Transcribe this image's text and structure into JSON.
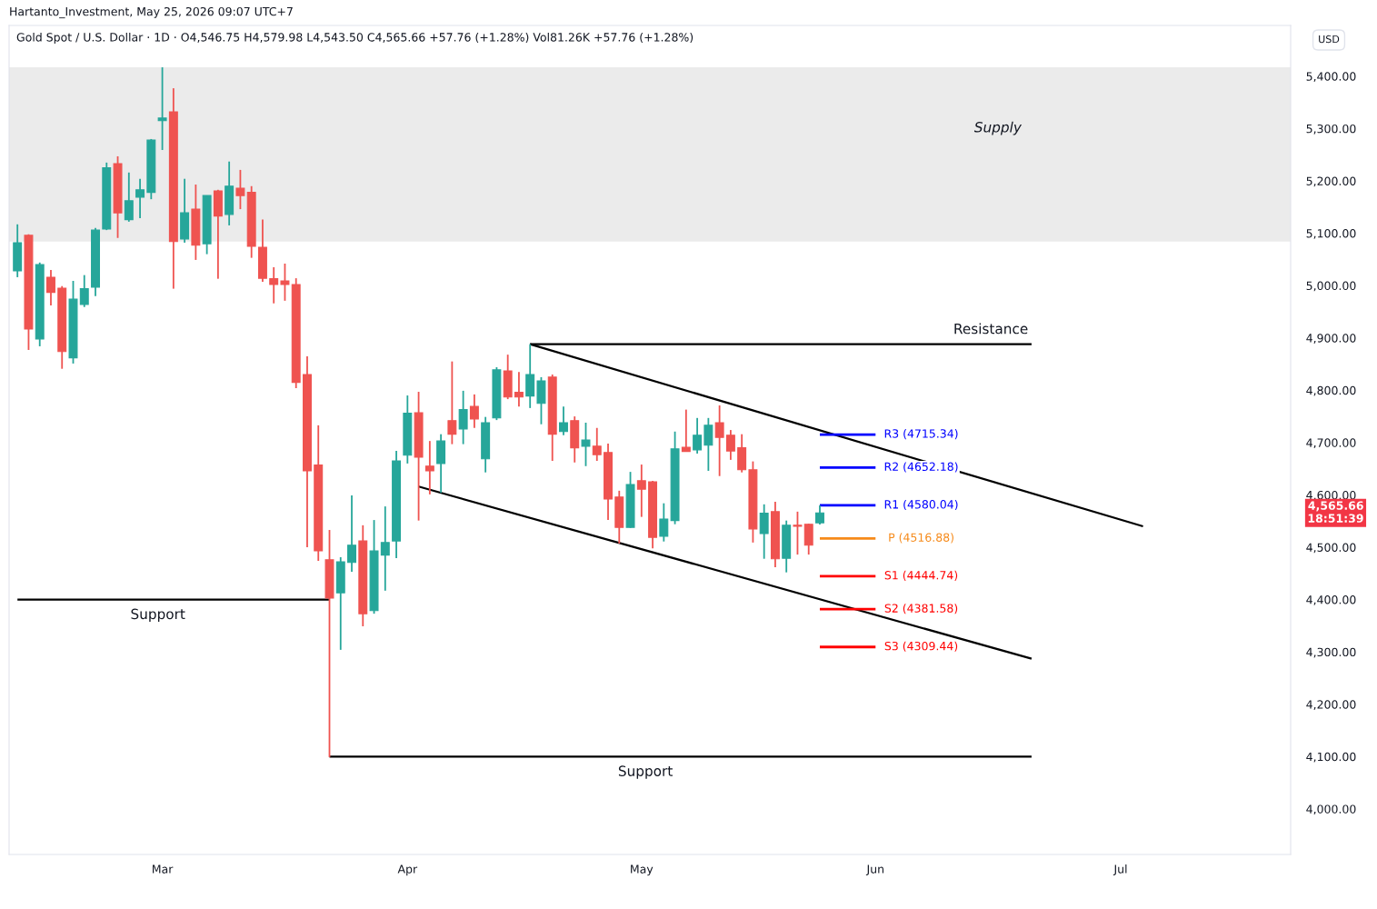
{
  "chart_data": {
    "type": "candlestick",
    "title": "Gold Spot / U.S. Dollar · 1D · O4,546.75 H4,579.98 L4,543.50 C4,565.66 +57.76 (+1.28%) Vol81.26K +57.76 (+1.28%)",
    "subtitle": "Hartanto_Investment, May 25, 2026 09:07 UTC+7",
    "categories": [
      null,
      null,
      null,
      null,
      null,
      null,
      null,
      null,
      null,
      null,
      null,
      null,
      null,
      "Mar",
      null,
      null,
      null,
      null,
      null,
      null,
      null,
      null,
      null,
      null,
      null,
      null,
      null,
      null,
      null,
      null,
      null,
      null,
      null,
      null,
      null,
      "Apr",
      null,
      null,
      null,
      null,
      null,
      null,
      null,
      null,
      null,
      null,
      null,
      null,
      null,
      null,
      null,
      null,
      null,
      null,
      null,
      null,
      "May",
      null,
      null,
      null,
      null,
      null,
      null,
      null,
      null,
      null,
      null,
      null,
      null,
      null,
      null,
      null,
      null,
      null,
      null,
      null,
      null,
      "Jun",
      null,
      null,
      null,
      null,
      null,
      null,
      null,
      null,
      null,
      null,
      null,
      null,
      null,
      null,
      null,
      null,
      null,
      null,
      null,
      null,
      null,
      "Jul",
      null,
      null,
      null,
      null,
      null,
      null,
      null,
      null,
      null,
      null,
      null,
      null,
      null,
      null,
      null
    ],
    "ohlc": [
      [
        5028,
        5117,
        5016,
        5082
      ],
      [
        5096,
        5098,
        4877,
        4917
      ],
      [
        4898,
        5044,
        4884,
        5040
      ],
      [
        5016,
        5030,
        4962,
        4987
      ],
      [
        4995,
        4999,
        4841,
        4874
      ],
      [
        4862,
        5009,
        4851,
        4974
      ],
      [
        4964,
        5020,
        4959,
        4994
      ],
      [
        4997,
        5110,
        4980,
        5106
      ],
      [
        5108,
        5235,
        5106,
        5225
      ],
      [
        5233,
        5247,
        5091,
        5139
      ],
      [
        5126,
        5216,
        5122,
        5162
      ],
      [
        5169,
        5204,
        5129,
        5183
      ],
      [
        5178,
        5280,
        5165,
        5278
      ],
      [
        5315,
        5417,
        5259,
        5320
      ],
      [
        5332,
        5377,
        4994,
        5084
      ],
      [
        5089,
        5204,
        5082,
        5139
      ],
      [
        5146,
        5193,
        5049,
        5077
      ],
      [
        5080,
        5172,
        5060,
        5172
      ],
      [
        5181,
        5183,
        5013,
        5133
      ],
      [
        5136,
        5237,
        5115,
        5190
      ],
      [
        5186,
        5221,
        5146,
        5172
      ],
      [
        5178,
        5190,
        5053,
        5075
      ],
      [
        5073,
        5126,
        5007,
        5014
      ],
      [
        5013,
        5035,
        4966,
        5002
      ],
      [
        5009,
        5042,
        4971,
        5002
      ],
      [
        5002,
        5014,
        4804,
        4815
      ],
      [
        4830,
        4865,
        4500,
        4646
      ],
      [
        4657,
        4733,
        4474,
        4493
      ],
      [
        4476,
        4533,
        4099,
        4403
      ],
      [
        4413,
        4481,
        4304,
        4472
      ],
      [
        4471,
        4599,
        4453,
        4504
      ],
      [
        4512,
        4542,
        4349,
        4373
      ],
      [
        4379,
        4552,
        4373,
        4493
      ],
      [
        4485,
        4578,
        4417,
        4509
      ],
      [
        4512,
        4684,
        4479,
        4665
      ],
      [
        4676,
        4790,
        4660,
        4756
      ],
      [
        4757,
        4797,
        4551,
        4672
      ],
      [
        4655,
        4703,
        4601,
        4646
      ],
      [
        4660,
        4716,
        4604,
        4703
      ],
      [
        4742,
        4855,
        4697,
        4716
      ],
      [
        4726,
        4799,
        4697,
        4763
      ],
      [
        4769,
        4792,
        4728,
        4745
      ],
      [
        4669,
        4749,
        4643,
        4738
      ],
      [
        4747,
        4844,
        4743,
        4839
      ],
      [
        4837,
        4868,
        4783,
        4787
      ],
      [
        4796,
        4835,
        4769,
        4787
      ],
      [
        4789,
        4888,
        4766,
        4830
      ],
      [
        4775,
        4825,
        4735,
        4818
      ],
      [
        4825,
        4830,
        4665,
        4716
      ],
      [
        4721,
        4769,
        4714,
        4738
      ],
      [
        4742,
        4750,
        4662,
        4690
      ],
      [
        4693,
        4738,
        4655,
        4705
      ],
      [
        4693,
        4728,
        4665,
        4677
      ],
      [
        4681,
        4698,
        4552,
        4592
      ],
      [
        4596,
        4608,
        4507,
        4538
      ],
      [
        4538,
        4644,
        4537,
        4620
      ],
      [
        4627,
        4658,
        4558,
        4611
      ],
      [
        4625,
        4627,
        4498,
        4519
      ],
      [
        4521,
        4584,
        4511,
        4554
      ],
      [
        4551,
        4721,
        4544,
        4688
      ],
      [
        4691,
        4763,
        4683,
        4683
      ],
      [
        4686,
        4747,
        4679,
        4714
      ],
      [
        4695,
        4747,
        4646,
        4733
      ],
      [
        4738,
        4771,
        4636,
        4710
      ],
      [
        4714,
        4724,
        4667,
        4684
      ],
      [
        4690,
        4716,
        4643,
        4648
      ],
      [
        4648,
        4664,
        4509,
        4535
      ],
      [
        4526,
        4582,
        4478,
        4565
      ],
      [
        4568,
        4587,
        4462,
        4478
      ],
      [
        4479,
        4551,
        4452,
        4542
      ],
      [
        4542,
        4568,
        4486,
        4540
      ],
      [
        4544,
        4545,
        4486,
        4504
      ],
      [
        4546.75,
        4579.98,
        4543.5,
        4565.66
      ],
      null,
      null,
      null,
      null,
      null,
      null,
      null,
      null,
      null,
      null,
      null,
      null,
      null,
      null,
      null,
      null,
      null,
      null,
      null,
      null,
      null,
      null,
      null,
      null,
      null,
      null,
      null,
      null,
      null,
      null,
      null,
      null,
      null,
      null,
      null,
      null,
      null,
      null,
      null,
      null,
      null,
      null
    ],
    "colors": [
      "#26a69a",
      "#ef5350",
      "#26a69a",
      "#ef5350",
      "#ef5350",
      "#26a69a",
      "#26a69a",
      "#26a69a",
      "#26a69a",
      "#ef5350",
      "#26a69a",
      "#26a69a",
      "#26a69a",
      "#26a69a",
      "#ef5350",
      "#26a69a",
      "#ef5350",
      "#26a69a",
      "#ef5350",
      "#26a69a",
      "#ef5350",
      "#ef5350",
      "#ef5350",
      "#ef5350",
      "#ef5350",
      "#ef5350",
      "#ef5350",
      "#ef5350",
      "#ef5350",
      "#26a69a",
      "#26a69a",
      "#ef5350",
      "#26a69a",
      "#26a69a",
      "#26a69a",
      "#26a69a",
      "#ef5350",
      "#ef5350",
      "#26a69a",
      "#ef5350",
      "#26a69a",
      "#ef5350",
      "#26a69a",
      "#26a69a",
      "#ef5350",
      "#ef5350",
      "#26a69a",
      "#26a69a",
      "#ef5350",
      "#26a69a",
      "#ef5350",
      "#26a69a",
      "#ef5350",
      "#ef5350",
      "#ef5350",
      "#26a69a",
      "#ef5350",
      "#ef5350",
      "#26a69a",
      "#26a69a",
      "#ef5350",
      "#26a69a",
      "#26a69a",
      "#ef5350",
      "#ef5350",
      "#ef5350",
      "#ef5350",
      "#26a69a",
      "#ef5350",
      "#26a69a",
      "#ef5350",
      "#ef5350",
      "#26a69a",
      null,
      null,
      null,
      null,
      null,
      null,
      null,
      null,
      null,
      null,
      null,
      null,
      null,
      null,
      null,
      null,
      null,
      null,
      null,
      null,
      null,
      null,
      null,
      null,
      null,
      null,
      null,
      null,
      null,
      null,
      null,
      null,
      null,
      null,
      null,
      null,
      null,
      null,
      null,
      null,
      null,
      null
    ],
    "series": [
      {
        "type": "line",
        "name": "Support",
        "color": "#000000",
        "values": [
          4400,
          null,
          null,
          null,
          null,
          null,
          null,
          null,
          null,
          null,
          null,
          null,
          null,
          null,
          null,
          null,
          null,
          null,
          null,
          null,
          null,
          null,
          null,
          null,
          null,
          null,
          null,
          null,
          4400,
          null,
          null,
          null,
          null,
          null,
          null,
          null,
          null,
          null,
          null,
          null,
          null,
          null,
          null,
          null,
          null,
          null,
          null,
          null,
          null,
          null,
          null,
          null,
          null,
          null,
          null,
          null,
          null,
          null,
          null,
          null,
          null,
          null,
          null,
          null,
          null,
          null,
          null,
          null,
          null,
          null,
          null,
          null,
          null,
          null,
          null,
          null,
          null,
          null,
          null,
          null,
          null,
          null,
          null,
          null,
          null,
          null,
          null,
          null,
          null,
          null,
          null,
          null,
          null,
          null,
          null,
          null,
          null,
          null,
          null,
          null,
          null,
          null,
          null,
          null,
          null,
          null,
          null,
          null,
          null,
          null,
          null,
          null,
          null,
          null,
          null
        ]
      },
      {
        "type": "line",
        "name": "Support",
        "color": "#000000",
        "values": [
          null,
          null,
          null,
          null,
          null,
          null,
          null,
          null,
          null,
          null,
          null,
          null,
          null,
          null,
          null,
          null,
          null,
          null,
          null,
          null,
          null,
          null,
          null,
          null,
          null,
          null,
          null,
          null,
          4100,
          null,
          null,
          null,
          null,
          null,
          null,
          null,
          null,
          null,
          null,
          null,
          null,
          null,
          null,
          null,
          null,
          null,
          null,
          null,
          null,
          null,
          null,
          null,
          null,
          null,
          null,
          null,
          null,
          null,
          null,
          null,
          null,
          null,
          null,
          null,
          null,
          null,
          null,
          null,
          null,
          null,
          null,
          null,
          null,
          null,
          null,
          null,
          null,
          null,
          null,
          null,
          null,
          null,
          null,
          null,
          null,
          null,
          null,
          null,
          null,
          null,
          null,
          4100,
          null,
          null,
          null,
          null,
          null,
          null,
          null,
          null,
          null,
          null,
          null,
          null,
          null,
          null,
          null,
          null,
          null,
          null,
          null,
          null,
          null,
          null,
          null
        ]
      },
      {
        "type": "line",
        "name": "Resistance",
        "color": "#000000",
        "values": [
          null,
          null,
          null,
          null,
          null,
          null,
          null,
          null,
          null,
          null,
          null,
          null,
          null,
          null,
          null,
          null,
          null,
          null,
          null,
          null,
          null,
          null,
          null,
          null,
          null,
          null,
          null,
          null,
          null,
          null,
          null,
          null,
          null,
          null,
          null,
          null,
          null,
          null,
          null,
          null,
          null,
          null,
          null,
          null,
          null,
          null,
          4888,
          null,
          null,
          null,
          null,
          null,
          null,
          null,
          null,
          null,
          null,
          null,
          null,
          null,
          null,
          null,
          null,
          null,
          null,
          null,
          null,
          null,
          null,
          null,
          null,
          null,
          null,
          null,
          null,
          null,
          null,
          null,
          null,
          null,
          null,
          null,
          null,
          null,
          null,
          null,
          null,
          null,
          null,
          null,
          null,
          4888,
          null,
          null,
          null,
          null,
          null,
          null,
          null,
          null,
          null,
          null,
          null,
          null,
          null,
          null,
          null,
          null,
          null,
          null,
          null,
          null,
          null,
          null,
          null
        ]
      },
      {
        "type": "line",
        "color": "#000000",
        "values": [
          null,
          null,
          null,
          null,
          null,
          null,
          null,
          null,
          null,
          null,
          null,
          null,
          null,
          null,
          null,
          null,
          null,
          null,
          null,
          null,
          null,
          null,
          null,
          null,
          null,
          null,
          null,
          null,
          null,
          null,
          null,
          null,
          null,
          null,
          null,
          null,
          null,
          null,
          null,
          null,
          null,
          null,
          null,
          null,
          null,
          null,
          4888,
          null,
          null,
          null,
          null,
          null,
          null,
          null,
          null,
          null,
          null,
          null,
          null,
          null,
          null,
          null,
          null,
          null,
          null,
          null,
          null,
          null,
          null,
          null,
          null,
          null,
          null,
          null,
          null,
          null,
          null,
          null,
          null,
          null,
          null,
          null,
          null,
          null,
          null,
          null,
          null,
          null,
          null,
          null,
          null,
          null,
          null,
          null,
          null,
          null,
          null,
          null,
          null,
          null,
          null,
          4540,
          null,
          null,
          null,
          null,
          null,
          null,
          null,
          null,
          null,
          null,
          null,
          null,
          null
        ]
      },
      {
        "type": "line",
        "color": "#000000",
        "values": [
          null,
          null,
          null,
          null,
          null,
          null,
          null,
          null,
          null,
          null,
          null,
          null,
          null,
          null,
          null,
          null,
          null,
          null,
          null,
          null,
          null,
          null,
          null,
          null,
          null,
          null,
          null,
          null,
          null,
          null,
          null,
          null,
          null,
          null,
          null,
          null,
          4616,
          null,
          null,
          null,
          null,
          null,
          null,
          null,
          null,
          null,
          null,
          null,
          null,
          null,
          null,
          null,
          null,
          null,
          null,
          null,
          null,
          null,
          null,
          null,
          null,
          null,
          null,
          null,
          null,
          null,
          null,
          null,
          null,
          null,
          null,
          null,
          null,
          null,
          null,
          null,
          null,
          null,
          null,
          null,
          null,
          null,
          null,
          null,
          null,
          null,
          null,
          null,
          null,
          null,
          null,
          4287,
          null,
          null,
          null,
          null,
          null,
          null,
          null,
          null,
          null,
          null,
          null,
          null,
          null,
          null,
          null,
          null,
          null,
          null,
          null,
          null,
          null,
          null,
          null
        ]
      },
      {
        "type": "line",
        "name": "R3 (4715.34)",
        "color": "#0000ff",
        "values": [
          null,
          null,
          null,
          null,
          null,
          null,
          null,
          null,
          null,
          null,
          null,
          null,
          null,
          null,
          null,
          null,
          null,
          null,
          null,
          null,
          null,
          null,
          null,
          null,
          null,
          null,
          null,
          null,
          null,
          null,
          null,
          null,
          null,
          null,
          null,
          null,
          null,
          null,
          null,
          null,
          null,
          null,
          null,
          null,
          null,
          null,
          null,
          null,
          null,
          null,
          null,
          null,
          null,
          null,
          null,
          null,
          null,
          null,
          null,
          null,
          null,
          null,
          null,
          null,
          null,
          null,
          null,
          null,
          null,
          null,
          null,
          null,
          4715.34,
          null,
          null,
          null,
          null,
          4715.34,
          null,
          null,
          null,
          null,
          null,
          null,
          null,
          null,
          null,
          null,
          null,
          null,
          null,
          null,
          null,
          null,
          null,
          null,
          null,
          null,
          null,
          null,
          null,
          null,
          null,
          null,
          null,
          null,
          null,
          null,
          null,
          null,
          null,
          null,
          null,
          null,
          null
        ]
      },
      {
        "type": "line",
        "name": "R2 (4652.18)",
        "color": "#0000ff",
        "values": [
          null,
          null,
          null,
          null,
          null,
          null,
          null,
          null,
          null,
          null,
          null,
          null,
          null,
          null,
          null,
          null,
          null,
          null,
          null,
          null,
          null,
          null,
          null,
          null,
          null,
          null,
          null,
          null,
          null,
          null,
          null,
          null,
          null,
          null,
          null,
          null,
          null,
          null,
          null,
          null,
          null,
          null,
          null,
          null,
          null,
          null,
          null,
          null,
          null,
          null,
          null,
          null,
          null,
          null,
          null,
          null,
          null,
          null,
          null,
          null,
          null,
          null,
          null,
          null,
          null,
          null,
          null,
          null,
          null,
          null,
          null,
          null,
          4652.18,
          null,
          null,
          null,
          null,
          4652.18,
          null,
          null,
          null,
          null,
          null,
          null,
          null,
          null,
          null,
          null,
          null,
          null,
          null,
          null,
          null,
          null,
          null,
          null,
          null,
          null,
          null,
          null,
          null,
          null,
          null,
          null,
          null,
          null,
          null,
          null,
          null,
          null,
          null,
          null,
          null,
          null,
          null
        ]
      },
      {
        "type": "line",
        "name": "R1 (4580.04)",
        "color": "#0000ff",
        "values": [
          null,
          null,
          null,
          null,
          null,
          null,
          null,
          null,
          null,
          null,
          null,
          null,
          null,
          null,
          null,
          null,
          null,
          null,
          null,
          null,
          null,
          null,
          null,
          null,
          null,
          null,
          null,
          null,
          null,
          null,
          null,
          null,
          null,
          null,
          null,
          null,
          null,
          null,
          null,
          null,
          null,
          null,
          null,
          null,
          null,
          null,
          null,
          null,
          null,
          null,
          null,
          null,
          null,
          null,
          null,
          null,
          null,
          null,
          null,
          null,
          null,
          null,
          null,
          null,
          null,
          null,
          null,
          null,
          null,
          null,
          null,
          null,
          4580.04,
          null,
          null,
          null,
          null,
          4580.04,
          null,
          null,
          null,
          null,
          null,
          null,
          null,
          null,
          null,
          null,
          null,
          null,
          null,
          null,
          null,
          null,
          null,
          null,
          null,
          null,
          null,
          null,
          null,
          null,
          null,
          null,
          null,
          null,
          null,
          null,
          null,
          null,
          null,
          null,
          null,
          null,
          null
        ]
      },
      {
        "type": "line",
        "name": "P (4516.88)",
        "color": "#f68a1a",
        "values": [
          null,
          null,
          null,
          null,
          null,
          null,
          null,
          null,
          null,
          null,
          null,
          null,
          null,
          null,
          null,
          null,
          null,
          null,
          null,
          null,
          null,
          null,
          null,
          null,
          null,
          null,
          null,
          null,
          null,
          null,
          null,
          null,
          null,
          null,
          null,
          null,
          null,
          null,
          null,
          null,
          null,
          null,
          null,
          null,
          null,
          null,
          null,
          null,
          null,
          null,
          null,
          null,
          null,
          null,
          null,
          null,
          null,
          null,
          null,
          null,
          null,
          null,
          null,
          null,
          null,
          null,
          null,
          null,
          null,
          null,
          null,
          null,
          4516.88,
          null,
          null,
          null,
          null,
          4516.88,
          null,
          null,
          null,
          null,
          null,
          null,
          null,
          null,
          null,
          null,
          null,
          null,
          null,
          null,
          null,
          null,
          null,
          null,
          null,
          null,
          null,
          null,
          null,
          null,
          null,
          null,
          null,
          null,
          null,
          null,
          null,
          null,
          null,
          null,
          null,
          null,
          null
        ]
      },
      {
        "type": "line",
        "name": "S1 (4444.74)",
        "color": "#ff0000",
        "values": [
          null,
          null,
          null,
          null,
          null,
          null,
          null,
          null,
          null,
          null,
          null,
          null,
          null,
          null,
          null,
          null,
          null,
          null,
          null,
          null,
          null,
          null,
          null,
          null,
          null,
          null,
          null,
          null,
          null,
          null,
          null,
          null,
          null,
          null,
          null,
          null,
          null,
          null,
          null,
          null,
          null,
          null,
          null,
          null,
          null,
          null,
          null,
          null,
          null,
          null,
          null,
          null,
          null,
          null,
          null,
          null,
          null,
          null,
          null,
          null,
          null,
          null,
          null,
          null,
          null,
          null,
          null,
          null,
          null,
          null,
          null,
          null,
          4444.74,
          null,
          null,
          null,
          null,
          4444.74,
          null,
          null,
          null,
          null,
          null,
          null,
          null,
          null,
          null,
          null,
          null,
          null,
          null,
          null,
          null,
          null,
          null,
          null,
          null,
          null,
          null,
          null,
          null,
          null,
          null,
          null,
          null,
          null,
          null,
          null,
          null,
          null,
          null,
          null,
          null,
          null,
          null
        ]
      },
      {
        "type": "line",
        "name": "S2 (4381.58)",
        "color": "#ff0000",
        "values": [
          null,
          null,
          null,
          null,
          null,
          null,
          null,
          null,
          null,
          null,
          null,
          null,
          null,
          null,
          null,
          null,
          null,
          null,
          null,
          null,
          null,
          null,
          null,
          null,
          null,
          null,
          null,
          null,
          null,
          null,
          null,
          null,
          null,
          null,
          null,
          null,
          null,
          null,
          null,
          null,
          null,
          null,
          null,
          null,
          null,
          null,
          null,
          null,
          null,
          null,
          null,
          null,
          null,
          null,
          null,
          null,
          null,
          null,
          null,
          null,
          null,
          null,
          null,
          null,
          null,
          null,
          null,
          null,
          null,
          null,
          null,
          null,
          4381.58,
          null,
          null,
          null,
          null,
          4381.58,
          null,
          null,
          null,
          null,
          null,
          null,
          null,
          null,
          null,
          null,
          null,
          null,
          null,
          null,
          null,
          null,
          null,
          null,
          null,
          null,
          null,
          null,
          null,
          null,
          null,
          null,
          null,
          null,
          null,
          null,
          null,
          null,
          null,
          null,
          null,
          null,
          null
        ]
      },
      {
        "type": "line",
        "name": "S3 (4309.44)",
        "color": "#ff0000",
        "values": [
          null,
          null,
          null,
          null,
          null,
          null,
          null,
          null,
          null,
          null,
          null,
          null,
          null,
          null,
          null,
          null,
          null,
          null,
          null,
          null,
          null,
          null,
          null,
          null,
          null,
          null,
          null,
          null,
          null,
          null,
          null,
          null,
          null,
          null,
          null,
          null,
          null,
          null,
          null,
          null,
          null,
          null,
          null,
          null,
          null,
          null,
          null,
          null,
          null,
          null,
          null,
          null,
          null,
          null,
          null,
          null,
          null,
          null,
          null,
          null,
          null,
          null,
          null,
          null,
          null,
          null,
          null,
          null,
          null,
          null,
          null,
          null,
          4309.44,
          null,
          null,
          null,
          null,
          4309.44,
          null,
          null,
          null,
          null,
          null,
          null,
          null,
          null,
          null,
          null,
          null,
          null,
          null,
          null,
          null,
          null,
          null,
          null,
          null,
          null,
          null,
          null,
          null,
          null,
          null,
          null,
          null,
          null,
          null,
          null,
          null,
          null,
          null,
          null,
          null,
          null,
          null
        ]
      }
    ],
    "bands": [
      {
        "axis": "y",
        "from": 5084,
        "to": 5417,
        "color": "#ebebeb",
        "label": "Supply"
      }
    ],
    "annotations": [
      "4,565.66\n18:51:39",
      "USD"
    ],
    "ylim": [
      3913,
      5497
    ],
    "yticks": [
      {
        "value": 4000,
        "label": "4,000.00"
      },
      {
        "value": 4100,
        "label": "4,100.00"
      },
      {
        "value": 4200,
        "label": "4,200.00"
      },
      {
        "value": 4300,
        "label": "4,300.00"
      },
      {
        "value": 4400,
        "label": "4,400.00"
      },
      {
        "value": 4500,
        "label": "4,500.00"
      },
      {
        "value": 4600,
        "label": "4,600.00"
      },
      {
        "value": 4700,
        "label": "4,700.00"
      },
      {
        "value": 4800,
        "label": "4,800.00"
      },
      {
        "value": 4900,
        "label": "4,900.00"
      },
      {
        "value": 5000,
        "label": "5,000.00"
      },
      {
        "value": 5100,
        "label": "5,100.00"
      },
      {
        "value": 5200,
        "label": "5,200.00"
      },
      {
        "value": 5300,
        "label": "5,300.00"
      },
      {
        "value": 5400,
        "label": "5,400.00"
      }
    ]
  }
}
